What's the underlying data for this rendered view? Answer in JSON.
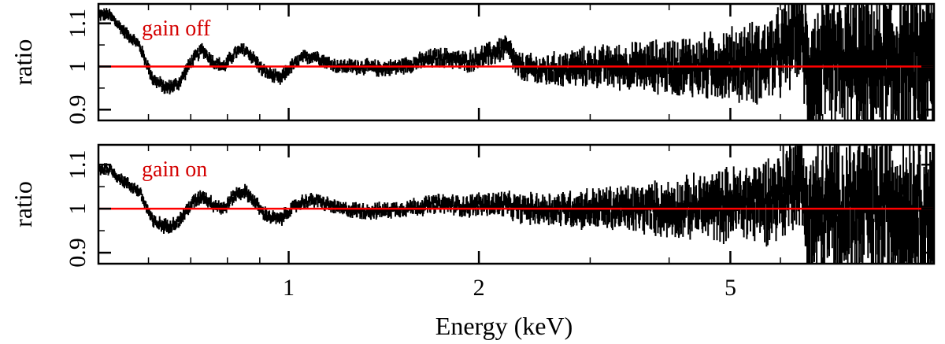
{
  "chart_data": [
    {
      "type": "line",
      "name": "panel-gain-off",
      "annotation": "gain off",
      "annotation_color": "#d40000",
      "xlabel": "",
      "ylabel": "ratio",
      "x_scale": "log",
      "xlim": [
        0.5,
        10.5
      ],
      "ylim": [
        0.875,
        1.145
      ],
      "yticks": [
        0.9,
        1,
        1.1
      ],
      "ytick_labels": [
        "0.9",
        "1",
        "1.1"
      ],
      "reference_line": {
        "y": 1.0,
        "color": "#ff0000"
      },
      "data_color": "#000000",
      "x": [
        0.52,
        0.55,
        0.58,
        0.61,
        0.64,
        0.67,
        0.7,
        0.73,
        0.76,
        0.79,
        0.82,
        0.85,
        0.88,
        0.91,
        0.94,
        0.97,
        1.0,
        1.05,
        1.1,
        1.15,
        1.2,
        1.3,
        1.4,
        1.5,
        1.6,
        1.7,
        1.8,
        1.9,
        2.0,
        2.1,
        2.2,
        2.25,
        2.3,
        2.5,
        2.7,
        3.0,
        3.5,
        4.0,
        4.5,
        5.0,
        5.5,
        6.0,
        6.2,
        6.35,
        6.5,
        6.6,
        6.7,
        7.0,
        7.5,
        8.0,
        9.0,
        10.0
      ],
      "y": [
        1.12,
        1.08,
        1.05,
        0.97,
        0.95,
        0.96,
        1.01,
        1.04,
        1.01,
        1.0,
        1.03,
        1.04,
        1.02,
        0.99,
        0.98,
        0.97,
        0.995,
        1.02,
        1.025,
        1.01,
        1.0,
        1.0,
        0.995,
        1.0,
        1.01,
        1.02,
        1.02,
        1.01,
        1.02,
        1.03,
        1.045,
        1.03,
        1.0,
        0.99,
        0.995,
        1.0,
        1.0,
        1.0,
        1.0,
        1.005,
        1.01,
        1.03,
        1.05,
        1.1,
        1.06,
        1.0,
        0.97,
        0.99,
        1.0,
        1.0,
        1.0,
        1.0
      ],
      "noise_envelope": [
        0.008,
        0.008,
        0.008,
        0.009,
        0.009,
        0.009,
        0.009,
        0.009,
        0.009,
        0.009,
        0.009,
        0.009,
        0.009,
        0.009,
        0.009,
        0.009,
        0.009,
        0.009,
        0.009,
        0.009,
        0.009,
        0.01,
        0.01,
        0.01,
        0.011,
        0.012,
        0.012,
        0.013,
        0.014,
        0.015,
        0.016,
        0.016,
        0.017,
        0.019,
        0.021,
        0.024,
        0.028,
        0.033,
        0.038,
        0.043,
        0.048,
        0.053,
        0.056,
        0.058,
        0.06,
        0.08,
        0.09,
        0.085,
        0.085,
        0.09,
        0.095,
        0.1
      ]
    },
    {
      "type": "line",
      "name": "panel-gain-on",
      "annotation": "gain on",
      "annotation_color": "#d40000",
      "xlabel": "Energy (keV)",
      "ylabel": "ratio",
      "x_scale": "log",
      "xlim": [
        0.5,
        10.5
      ],
      "ylim": [
        0.875,
        1.145
      ],
      "yticks": [
        0.9,
        1,
        1.1
      ],
      "ytick_labels": [
        "0.9",
        "1",
        "1.1"
      ],
      "xticks": [
        1,
        2,
        5
      ],
      "xtick_labels": [
        "1",
        "2",
        "5"
      ],
      "reference_line": {
        "y": 1.0,
        "color": "#ff0000"
      },
      "data_color": "#000000",
      "x": [
        0.52,
        0.55,
        0.58,
        0.61,
        0.64,
        0.67,
        0.7,
        0.73,
        0.76,
        0.79,
        0.82,
        0.85,
        0.88,
        0.91,
        0.94,
        0.97,
        1.0,
        1.05,
        1.1,
        1.15,
        1.2,
        1.3,
        1.4,
        1.5,
        1.6,
        1.7,
        1.8,
        1.9,
        2.0,
        2.1,
        2.2,
        2.25,
        2.3,
        2.5,
        2.7,
        3.0,
        3.5,
        4.0,
        4.5,
        5.0,
        5.5,
        6.0,
        6.2,
        6.35,
        6.5,
        6.6,
        6.7,
        7.0,
        7.5,
        8.0,
        9.0,
        10.0
      ],
      "y": [
        1.09,
        1.06,
        1.04,
        0.97,
        0.96,
        0.97,
        1.01,
        1.03,
        1.01,
        1.0,
        1.03,
        1.04,
        1.02,
        0.99,
        0.98,
        0.975,
        0.995,
        1.015,
        1.02,
        1.01,
        1.0,
        0.995,
        0.995,
        1.0,
        1.005,
        1.01,
        1.01,
        1.005,
        1.01,
        1.01,
        1.01,
        1.005,
        1.0,
        1.0,
        1.0,
        1.0,
        1.0,
        1.0,
        1.005,
        1.01,
        1.015,
        1.03,
        1.05,
        1.085,
        1.05,
        1.0,
        0.97,
        0.99,
        1.0,
        1.0,
        1.0,
        1.0
      ],
      "noise_envelope": [
        0.008,
        0.008,
        0.008,
        0.009,
        0.009,
        0.009,
        0.009,
        0.009,
        0.009,
        0.009,
        0.009,
        0.009,
        0.009,
        0.009,
        0.009,
        0.009,
        0.009,
        0.009,
        0.009,
        0.009,
        0.009,
        0.01,
        0.01,
        0.01,
        0.011,
        0.012,
        0.012,
        0.013,
        0.014,
        0.015,
        0.016,
        0.016,
        0.017,
        0.019,
        0.021,
        0.024,
        0.028,
        0.033,
        0.038,
        0.043,
        0.048,
        0.053,
        0.056,
        0.058,
        0.06,
        0.08,
        0.09,
        0.085,
        0.085,
        0.09,
        0.095,
        0.1
      ]
    }
  ]
}
